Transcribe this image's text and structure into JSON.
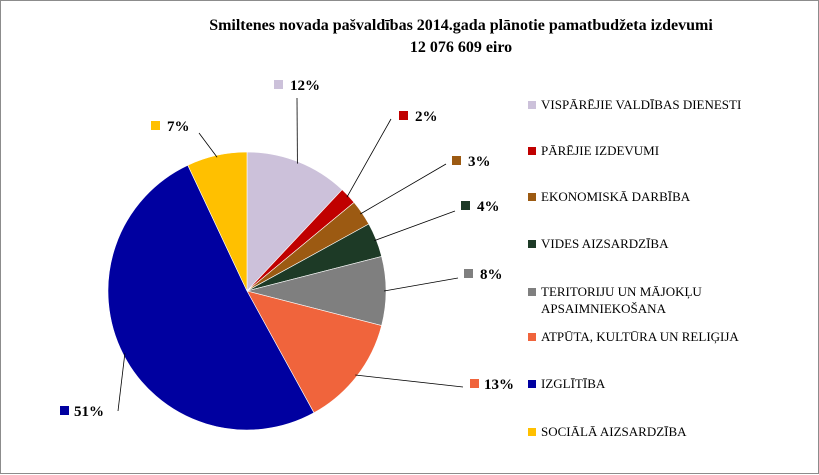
{
  "chart_data": {
    "type": "pie",
    "title": "Smiltenes novada pašvaldības 2014.gada plānotie pamatbudžeta izdevumi",
    "subtitle": "12 076 609 eiro",
    "legend_position": "right",
    "slices": [
      {
        "name": "VISPĀRĒJIE VALDĪBAS DIENESTI",
        "value": 12,
        "label": "12%",
        "color": "#ccc1da"
      },
      {
        "name": "PĀRĒJIE IZDEVUMI",
        "value": 2,
        "label": "2%",
        "color": "#c00000"
      },
      {
        "name": "EKONOMISKĀ DARBĪBA",
        "value": 3,
        "label": "3%",
        "color": "#9c5a12"
      },
      {
        "name": "VIDES AIZSARDZĪBA",
        "value": 4,
        "label": "4%",
        "color": "#1d3a26"
      },
      {
        "name": "TERITORIJU UN MĀJOKĻU APSAIMNIEKOŠANA",
        "value": 8,
        "label": "8%",
        "color": "#7f7f7f"
      },
      {
        "name": "ATPŪTA, KULTŪRA UN RELIĢIJA",
        "value": 13,
        "label": "13%",
        "color": "#f0643c"
      },
      {
        "name": "IZGLĪTĪBA",
        "value": 51,
        "label": "51%",
        "color": "#0000a0"
      },
      {
        "name": "SOCIĀLĀ AIZSARDZĪBA",
        "value": 7,
        "label": "7%",
        "color": "#ffc000"
      }
    ]
  }
}
